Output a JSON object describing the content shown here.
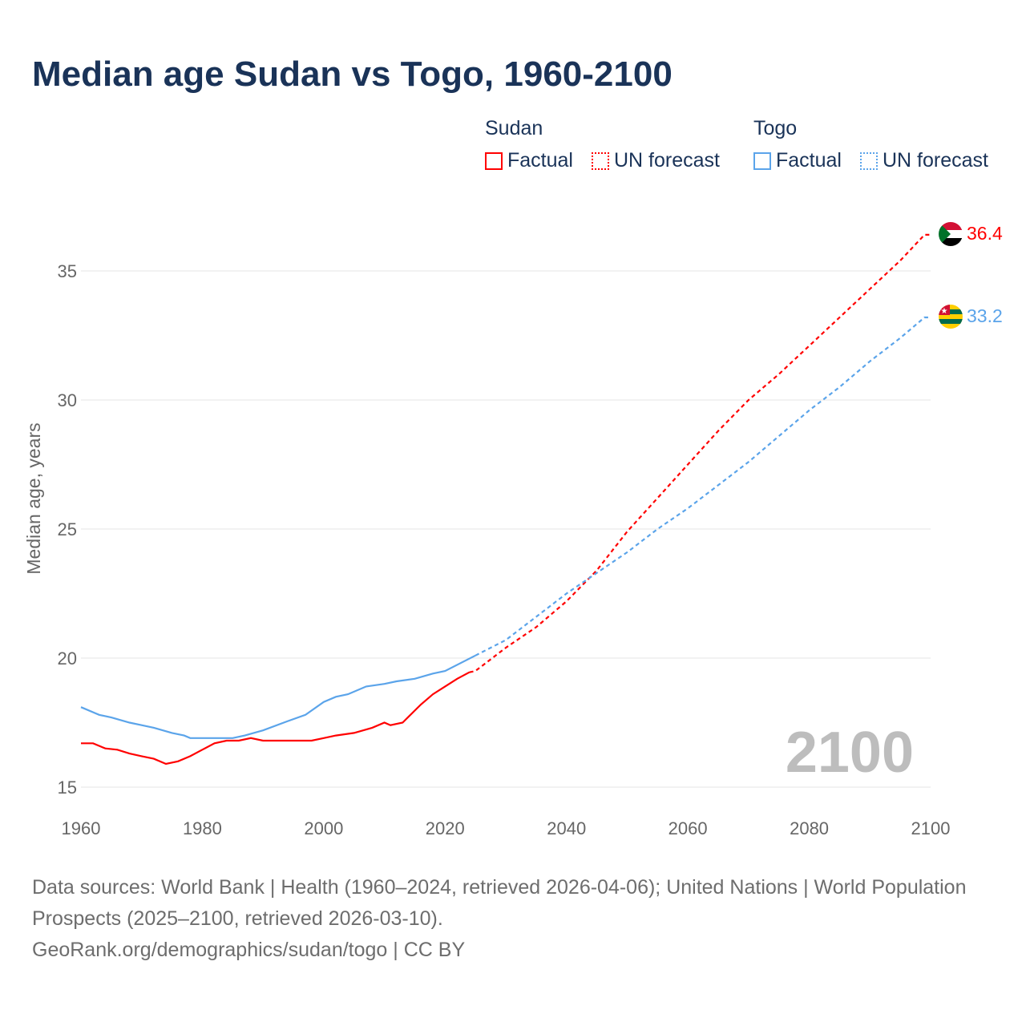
{
  "title": "Median age Sudan vs Togo, 1960-2100",
  "legend": {
    "groups": [
      {
        "name": "Sudan",
        "factual": "Factual",
        "forecast": "UN forecast",
        "color": "#ff0000"
      },
      {
        "name": "Togo",
        "factual": "Factual",
        "forecast": "UN forecast",
        "color": "#5ba4ea"
      }
    ]
  },
  "year_watermark": "2100",
  "footer": {
    "line1": "Data sources: World Bank | Health (1960–2024, retrieved 2026-04-06); United Nations | World Population Prospects (2025–2100, retrieved 2026-03-10).",
    "line2": "GeoRank.org/demographics/sudan/togo | CC BY"
  },
  "chart_data": {
    "type": "line",
    "title": "Median age Sudan vs Togo, 1960-2100",
    "xlabel": "",
    "ylabel": "Median age, years",
    "xlim": [
      1960,
      2100
    ],
    "ylim": [
      15,
      37
    ],
    "xticks": [
      1960,
      1980,
      2000,
      2020,
      2040,
      2060,
      2080,
      2100
    ],
    "yticks": [
      15,
      20,
      25,
      30,
      35
    ],
    "grid": true,
    "series": [
      {
        "name": "Sudan",
        "kind": "factual",
        "color": "#ff0000",
        "points": [
          [
            1960,
            16.7
          ],
          [
            1962,
            16.7
          ],
          [
            1964,
            16.5
          ],
          [
            1966,
            16.45
          ],
          [
            1968,
            16.3
          ],
          [
            1970,
            16.2
          ],
          [
            1972,
            16.1
          ],
          [
            1974,
            15.9
          ],
          [
            1976,
            16.0
          ],
          [
            1978,
            16.2
          ],
          [
            1980,
            16.45
          ],
          [
            1982,
            16.7
          ],
          [
            1984,
            16.8
          ],
          [
            1986,
            16.8
          ],
          [
            1988,
            16.9
          ],
          [
            1990,
            16.8
          ],
          [
            1998,
            16.8
          ],
          [
            2000,
            16.9
          ],
          [
            2002,
            17.0
          ],
          [
            2005,
            17.1
          ],
          [
            2008,
            17.3
          ],
          [
            2010,
            17.5
          ],
          [
            2011,
            17.4
          ],
          [
            2013,
            17.5
          ],
          [
            2016,
            18.2
          ],
          [
            2018,
            18.6
          ],
          [
            2020,
            18.9
          ],
          [
            2022,
            19.2
          ],
          [
            2024,
            19.45
          ]
        ]
      },
      {
        "name": "Sudan",
        "kind": "UN forecast",
        "color": "#ff0000",
        "points": [
          [
            2024,
            19.45
          ],
          [
            2025,
            19.5
          ],
          [
            2030,
            20.4
          ],
          [
            2035,
            21.2
          ],
          [
            2040,
            22.2
          ],
          [
            2045,
            23.4
          ],
          [
            2050,
            24.9
          ],
          [
            2055,
            26.2
          ],
          [
            2060,
            27.5
          ],
          [
            2065,
            28.8
          ],
          [
            2070,
            30.0
          ],
          [
            2075,
            31.0
          ],
          [
            2080,
            32.1
          ],
          [
            2085,
            33.2
          ],
          [
            2090,
            34.3
          ],
          [
            2095,
            35.4
          ],
          [
            2099,
            36.4
          ],
          [
            2100,
            36.4
          ]
        ],
        "end_label": "36.4"
      },
      {
        "name": "Togo",
        "kind": "factual",
        "color": "#5ba4ea",
        "points": [
          [
            1960,
            18.1
          ],
          [
            1963,
            17.8
          ],
          [
            1965,
            17.7
          ],
          [
            1968,
            17.5
          ],
          [
            1970,
            17.4
          ],
          [
            1972,
            17.3
          ],
          [
            1975,
            17.1
          ],
          [
            1977,
            17.0
          ],
          [
            1978,
            16.9
          ],
          [
            1985,
            16.9
          ],
          [
            1987,
            17.0
          ],
          [
            1990,
            17.2
          ],
          [
            1994,
            17.55
          ],
          [
            1997,
            17.8
          ],
          [
            2000,
            18.3
          ],
          [
            2002,
            18.5
          ],
          [
            2004,
            18.6
          ],
          [
            2007,
            18.9
          ],
          [
            2010,
            19.0
          ],
          [
            2012,
            19.1
          ],
          [
            2015,
            19.2
          ],
          [
            2018,
            19.4
          ],
          [
            2020,
            19.5
          ],
          [
            2025,
            20.1
          ]
        ]
      },
      {
        "name": "Togo",
        "kind": "UN forecast",
        "color": "#5ba4ea",
        "points": [
          [
            2025,
            20.1
          ],
          [
            2030,
            20.7
          ],
          [
            2035,
            21.6
          ],
          [
            2040,
            22.5
          ],
          [
            2045,
            23.3
          ],
          [
            2050,
            24.1
          ],
          [
            2055,
            25.0
          ],
          [
            2060,
            25.8
          ],
          [
            2065,
            26.7
          ],
          [
            2070,
            27.6
          ],
          [
            2075,
            28.6
          ],
          [
            2080,
            29.6
          ],
          [
            2085,
            30.5
          ],
          [
            2090,
            31.5
          ],
          [
            2095,
            32.4
          ],
          [
            2099,
            33.2
          ],
          [
            2100,
            33.2
          ]
        ],
        "end_label": "33.2"
      }
    ]
  }
}
